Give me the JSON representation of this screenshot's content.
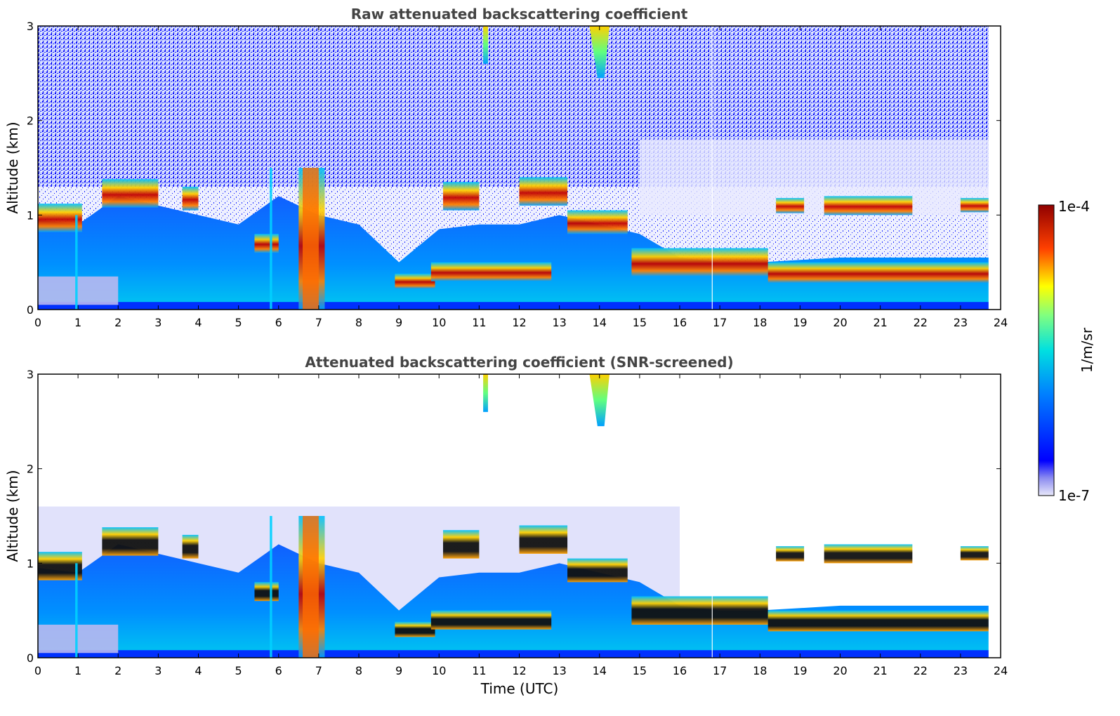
{
  "figure": {
    "xlabel": "Time (UTC)",
    "colorbar": {
      "label": "1/m/sr",
      "max_label": "1e-4",
      "min_label": "1e-7"
    }
  },
  "chart_data": [
    {
      "type": "heatmap",
      "title": "Raw attenuated backscattering coefficient",
      "xlabel": "",
      "ylabel": "Altitude (km)",
      "xlim": [
        0,
        24
      ],
      "ylim": [
        0,
        3
      ],
      "xticks": [
        "0",
        "1",
        "2",
        "3",
        "4",
        "5",
        "6",
        "7",
        "8",
        "9",
        "10",
        "11",
        "12",
        "13",
        "14",
        "15",
        "16",
        "17",
        "18",
        "19",
        "20",
        "21",
        "22",
        "23",
        "24"
      ],
      "yticks": [
        "0",
        "1",
        "2",
        "3"
      ],
      "colorbar_range": [
        "1e-7",
        "1e-4"
      ]
    },
    {
      "type": "heatmap",
      "title": "Attenuated backscattering coefficient (SNR-screened)",
      "xlabel": "Time (UTC)",
      "ylabel": "Altitude (km)",
      "xlim": [
        0,
        24
      ],
      "ylim": [
        0,
        3
      ],
      "xticks": [
        "0",
        "1",
        "2",
        "3",
        "4",
        "5",
        "6",
        "7",
        "8",
        "9",
        "10",
        "11",
        "12",
        "13",
        "14",
        "15",
        "16",
        "17",
        "18",
        "19",
        "20",
        "21",
        "22",
        "23",
        "24"
      ],
      "yticks": [
        "0",
        "1",
        "2",
        "3"
      ],
      "colorbar_range": [
        "1e-7",
        "1e-4"
      ]
    }
  ]
}
